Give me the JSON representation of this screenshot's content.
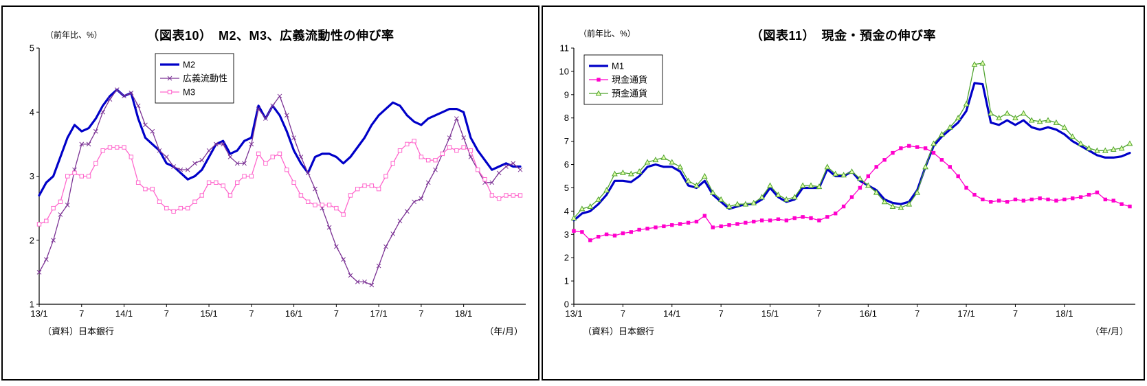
{
  "page": {
    "background": "#ffffff"
  },
  "chart_data": [
    {
      "panel": "left",
      "type": "line",
      "title": "（図表10）　M2、M3、広義流動性の伸び率",
      "y_unit": "（前年比、%）",
      "x_unit": "（年/月）",
      "source": "（資料）日本銀行",
      "ylim": [
        1,
        5
      ],
      "y_ticks": [
        1,
        2,
        3,
        4,
        5
      ],
      "x_tick_labels": [
        "13/1",
        "7",
        "14/1",
        "7",
        "15/1",
        "7",
        "16/1",
        "7",
        "17/1",
        "7",
        "18/1"
      ],
      "x_tick_positions": [
        0,
        6,
        12,
        18,
        24,
        30,
        36,
        42,
        48,
        54,
        60
      ],
      "x_start": "2013/1",
      "x_end": "2018/9",
      "grid": false,
      "legend_position": "upper-left-inside",
      "series": [
        {
          "name": "M2",
          "color": "#0000C8",
          "width": 3.2,
          "marker": "none",
          "values": [
            2.7,
            2.9,
            3.0,
            3.3,
            3.6,
            3.8,
            3.7,
            3.75,
            3.9,
            4.1,
            4.25,
            4.35,
            4.25,
            4.3,
            3.9,
            3.6,
            3.5,
            3.4,
            3.2,
            3.15,
            3.05,
            2.95,
            3.0,
            3.1,
            3.3,
            3.5,
            3.55,
            3.35,
            3.4,
            3.55,
            3.6,
            4.1,
            3.9,
            4.1,
            3.95,
            3.7,
            3.4,
            3.2,
            3.05,
            3.3,
            3.35,
            3.35,
            3.3,
            3.2,
            3.3,
            3.45,
            3.6,
            3.8,
            3.95,
            4.05,
            4.15,
            4.1,
            3.95,
            3.85,
            3.8,
            3.9,
            3.95,
            4.0,
            4.05,
            4.05,
            4.0,
            3.6,
            3.4,
            3.25,
            3.1,
            3.15,
            3.2,
            3.15,
            3.15
          ]
        },
        {
          "name": "広義流動性",
          "color": "#7B3294",
          "width": 1.3,
          "marker": "x",
          "values": [
            1.5,
            1.7,
            2.0,
            2.4,
            2.55,
            3.1,
            3.5,
            3.5,
            3.7,
            4.0,
            4.2,
            4.35,
            4.25,
            4.3,
            4.1,
            3.8,
            3.7,
            3.4,
            3.3,
            3.15,
            3.1,
            3.1,
            3.2,
            3.25,
            3.4,
            3.5,
            3.5,
            3.3,
            3.2,
            3.2,
            3.5,
            4.05,
            3.9,
            4.1,
            4.25,
            3.95,
            3.6,
            3.3,
            3.05,
            2.8,
            2.5,
            2.2,
            1.9,
            1.7,
            1.45,
            1.35,
            1.35,
            1.3,
            1.6,
            1.9,
            2.1,
            2.3,
            2.45,
            2.6,
            2.65,
            2.9,
            3.1,
            3.35,
            3.6,
            3.9,
            3.6,
            3.3,
            3.1,
            2.9,
            2.9,
            3.05,
            3.15,
            3.2,
            3.1
          ]
        },
        {
          "name": "M3",
          "color": "#FF66CC",
          "width": 1.3,
          "marker": "square-open",
          "marker_fill": "#ffffff",
          "values": [
            2.25,
            2.3,
            2.5,
            2.6,
            3.0,
            3.05,
            3.0,
            3.0,
            3.2,
            3.4,
            3.45,
            3.45,
            3.45,
            3.3,
            2.9,
            2.8,
            2.8,
            2.6,
            2.5,
            2.45,
            2.5,
            2.5,
            2.6,
            2.7,
            2.9,
            2.9,
            2.85,
            2.7,
            2.9,
            3.0,
            3.0,
            3.35,
            3.2,
            3.3,
            3.35,
            3.1,
            2.9,
            2.7,
            2.6,
            2.55,
            2.55,
            2.55,
            2.5,
            2.4,
            2.7,
            2.8,
            2.85,
            2.85,
            2.8,
            3.0,
            3.2,
            3.4,
            3.5,
            3.55,
            3.3,
            3.25,
            3.25,
            3.35,
            3.45,
            3.4,
            3.45,
            3.4,
            3.1,
            2.95,
            2.7,
            2.65,
            2.7,
            2.7,
            2.7
          ]
        }
      ]
    },
    {
      "panel": "right",
      "type": "line",
      "title": "（図表11）　現金・預金の伸び率",
      "y_unit": "（前年比、%）",
      "x_unit": "（年/月）",
      "source": "（資料）日本銀行",
      "ylim": [
        0,
        11
      ],
      "y_ticks": [
        0,
        1,
        2,
        3,
        4,
        5,
        6,
        7,
        8,
        9,
        10,
        11
      ],
      "x_tick_labels": [
        "13/1",
        "7",
        "14/1",
        "7",
        "15/1",
        "7",
        "16/1",
        "7",
        "17/1",
        "7",
        "18/1"
      ],
      "x_tick_positions": [
        0,
        6,
        12,
        18,
        24,
        30,
        36,
        42,
        48,
        54,
        60
      ],
      "x_start": "2013/1",
      "x_end": "2018/9",
      "grid": false,
      "legend_position": "upper-left-inside",
      "series": [
        {
          "name": "M1",
          "color": "#0000C8",
          "width": 3.2,
          "marker": "none",
          "values": [
            3.6,
            3.9,
            4.0,
            4.3,
            4.7,
            5.3,
            5.3,
            5.25,
            5.5,
            5.9,
            6.0,
            5.9,
            5.9,
            5.7,
            5.1,
            5.0,
            5.3,
            4.7,
            4.4,
            4.1,
            4.2,
            4.3,
            4.3,
            4.5,
            5.0,
            4.6,
            4.4,
            4.5,
            5.0,
            5.0,
            5.0,
            5.8,
            5.5,
            5.5,
            5.7,
            5.3,
            5.1,
            4.9,
            4.5,
            4.35,
            4.3,
            4.4,
            4.9,
            5.9,
            6.8,
            7.2,
            7.5,
            7.8,
            8.3,
            9.5,
            9.45,
            7.8,
            7.7,
            7.9,
            7.7,
            7.9,
            7.6,
            7.5,
            7.6,
            7.5,
            7.3,
            7.0,
            6.8,
            6.6,
            6.4,
            6.3,
            6.3,
            6.35,
            6.5
          ]
        },
        {
          "name": "現金通貨",
          "color": "#FF00CC",
          "width": 1.3,
          "marker": "square-filled",
          "values": [
            3.15,
            3.1,
            2.75,
            2.9,
            3.0,
            2.95,
            3.05,
            3.1,
            3.2,
            3.25,
            3.3,
            3.35,
            3.4,
            3.45,
            3.5,
            3.55,
            3.8,
            3.3,
            3.35,
            3.4,
            3.45,
            3.5,
            3.55,
            3.6,
            3.6,
            3.65,
            3.6,
            3.7,
            3.75,
            3.7,
            3.6,
            3.75,
            3.9,
            4.2,
            4.6,
            5.0,
            5.5,
            5.9,
            6.2,
            6.5,
            6.7,
            6.8,
            6.75,
            6.7,
            6.5,
            6.2,
            5.9,
            5.5,
            5.0,
            4.7,
            4.5,
            4.4,
            4.45,
            4.4,
            4.5,
            4.45,
            4.5,
            4.55,
            4.5,
            4.45,
            4.5,
            4.55,
            4.6,
            4.7,
            4.8,
            4.5,
            4.45,
            4.3,
            4.2
          ]
        },
        {
          "name": "預金通貨",
          "color": "#4FA32F",
          "width": 1.3,
          "marker": "triangle-open",
          "marker_fill": "#E4FFAA",
          "values": [
            3.7,
            4.1,
            4.2,
            4.5,
            4.9,
            5.6,
            5.65,
            5.6,
            5.7,
            6.1,
            6.2,
            6.3,
            6.1,
            5.9,
            5.3,
            5.1,
            5.5,
            4.8,
            4.5,
            4.2,
            4.3,
            4.3,
            4.35,
            4.6,
            5.1,
            4.7,
            4.5,
            4.6,
            5.1,
            5.1,
            5.05,
            5.9,
            5.6,
            5.55,
            5.7,
            5.4,
            5.1,
            4.8,
            4.4,
            4.2,
            4.15,
            4.3,
            4.8,
            5.9,
            6.9,
            7.3,
            7.6,
            8.0,
            8.6,
            10.3,
            10.35,
            8.2,
            8.0,
            8.2,
            8.0,
            8.2,
            7.9,
            7.85,
            7.9,
            7.8,
            7.6,
            7.2,
            6.9,
            6.7,
            6.6,
            6.6,
            6.65,
            6.7,
            6.9
          ]
        }
      ]
    }
  ]
}
